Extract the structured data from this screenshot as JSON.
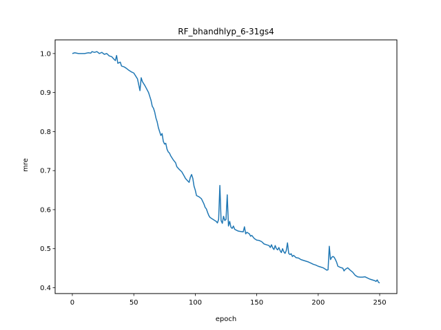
{
  "chart_data": {
    "type": "line",
    "title": "RF_bhandhlyp_6-31gs4",
    "xlabel": "epoch",
    "ylabel": "mre",
    "xlim": [
      -14,
      264
    ],
    "ylim": [
      0.385,
      1.035
    ],
    "xticks": [
      0,
      50,
      100,
      150,
      200,
      250
    ],
    "yticks": [
      0.4,
      0.5,
      0.6,
      0.7,
      0.8,
      0.9,
      1.0
    ],
    "xtick_labels": [
      "0",
      "50",
      "100",
      "150",
      "200",
      "250"
    ],
    "ytick_labels": [
      "0.4",
      "0.5",
      "0.6",
      "0.7",
      "0.8",
      "0.9",
      "1.0"
    ],
    "grid": false,
    "legend": "none",
    "series": [
      {
        "color": "#1f77b4",
        "points": [
          [
            0,
            1.0
          ],
          [
            2,
            1.002
          ],
          [
            5,
            1.0
          ],
          [
            8,
            1.0
          ],
          [
            10,
            1.0
          ],
          [
            13,
            1.002
          ],
          [
            15,
            1.001
          ],
          [
            16,
            1.005
          ],
          [
            18,
            1.003
          ],
          [
            20,
            1.005
          ],
          [
            22,
            1.0
          ],
          [
            24,
            1.003
          ],
          [
            26,
            0.998
          ],
          [
            28,
            1.0
          ],
          [
            30,
            0.994
          ],
          [
            32,
            0.992
          ],
          [
            34,
            0.985
          ],
          [
            35,
            0.982
          ],
          [
            36,
            0.995
          ],
          [
            37,
            0.975
          ],
          [
            39,
            0.978
          ],
          [
            40,
            0.968
          ],
          [
            42,
            0.966
          ],
          [
            44,
            0.962
          ],
          [
            46,
            0.957
          ],
          [
            48,
            0.953
          ],
          [
            50,
            0.95
          ],
          [
            52,
            0.94
          ],
          [
            53,
            0.935
          ],
          [
            54,
            0.92
          ],
          [
            55,
            0.905
          ],
          [
            56,
            0.938
          ],
          [
            57,
            0.928
          ],
          [
            59,
            0.918
          ],
          [
            60,
            0.912
          ],
          [
            62,
            0.9
          ],
          [
            63,
            0.89
          ],
          [
            64,
            0.88
          ],
          [
            65,
            0.865
          ],
          [
            66,
            0.86
          ],
          [
            67,
            0.85
          ],
          [
            68,
            0.835
          ],
          [
            69,
            0.825
          ],
          [
            70,
            0.81
          ],
          [
            71,
            0.8
          ],
          [
            72,
            0.79
          ],
          [
            73,
            0.795
          ],
          [
            74,
            0.775
          ],
          [
            75,
            0.768
          ],
          [
            76,
            0.77
          ],
          [
            77,
            0.755
          ],
          [
            78,
            0.748
          ],
          [
            79,
            0.745
          ],
          [
            80,
            0.738
          ],
          [
            82,
            0.728
          ],
          [
            84,
            0.72
          ],
          [
            85,
            0.71
          ],
          [
            87,
            0.703
          ],
          [
            89,
            0.697
          ],
          [
            91,
            0.686
          ],
          [
            92,
            0.68
          ],
          [
            94,
            0.673
          ],
          [
            95,
            0.67
          ],
          [
            96,
            0.683
          ],
          [
            97,
            0.69
          ],
          [
            98,
            0.68
          ],
          [
            99,
            0.66
          ],
          [
            100,
            0.65
          ],
          [
            101,
            0.636
          ],
          [
            103,
            0.633
          ],
          [
            105,
            0.628
          ],
          [
            107,
            0.615
          ],
          [
            108,
            0.606
          ],
          [
            109,
            0.602
          ],
          [
            110,
            0.593
          ],
          [
            111,
            0.585
          ],
          [
            112,
            0.58
          ],
          [
            114,
            0.576
          ],
          [
            116,
            0.572
          ],
          [
            117,
            0.57
          ],
          [
            118,
            0.566
          ],
          [
            119,
            0.575
          ],
          [
            120,
            0.662
          ],
          [
            121,
            0.572
          ],
          [
            122,
            0.565
          ],
          [
            123,
            0.583
          ],
          [
            124,
            0.572
          ],
          [
            125,
            0.575
          ],
          [
            126,
            0.638
          ],
          [
            127,
            0.558
          ],
          [
            128,
            0.57
          ],
          [
            129,
            0.555
          ],
          [
            130,
            0.552
          ],
          [
            131,
            0.558
          ],
          [
            132,
            0.55
          ],
          [
            133,
            0.548
          ],
          [
            135,
            0.545
          ],
          [
            137,
            0.544
          ],
          [
            139,
            0.543
          ],
          [
            140,
            0.556
          ],
          [
            141,
            0.538
          ],
          [
            142,
            0.542
          ],
          [
            144,
            0.538
          ],
          [
            145,
            0.532
          ],
          [
            146,
            0.534
          ],
          [
            148,
            0.526
          ],
          [
            150,
            0.522
          ],
          [
            152,
            0.521
          ],
          [
            154,
            0.518
          ],
          [
            156,
            0.512
          ],
          [
            158,
            0.51
          ],
          [
            160,
            0.508
          ],
          [
            161,
            0.503
          ],
          [
            162,
            0.51
          ],
          [
            163,
            0.502
          ],
          [
            164,
            0.498
          ],
          [
            165,
            0.508
          ],
          [
            166,
            0.5
          ],
          [
            167,
            0.497
          ],
          [
            168,
            0.503
          ],
          [
            169,
            0.495
          ],
          [
            170,
            0.49
          ],
          [
            171,
            0.5
          ],
          [
            172,
            0.492
          ],
          [
            173,
            0.488
          ],
          [
            174,
            0.495
          ],
          [
            175,
            0.515
          ],
          [
            176,
            0.488
          ],
          [
            177,
            0.485
          ],
          [
            178,
            0.487
          ],
          [
            179,
            0.48
          ],
          [
            180,
            0.483
          ],
          [
            182,
            0.477
          ],
          [
            184,
            0.476
          ],
          [
            186,
            0.472
          ],
          [
            188,
            0.47
          ],
          [
            190,
            0.468
          ],
          [
            192,
            0.466
          ],
          [
            194,
            0.463
          ],
          [
            196,
            0.46
          ],
          [
            198,
            0.458
          ],
          [
            200,
            0.455
          ],
          [
            202,
            0.453
          ],
          [
            204,
            0.451
          ],
          [
            206,
            0.447
          ],
          [
            207,
            0.445
          ],
          [
            208,
            0.446
          ],
          [
            209,
            0.506
          ],
          [
            210,
            0.472
          ],
          [
            211,
            0.478
          ],
          [
            212,
            0.48
          ],
          [
            213,
            0.478
          ],
          [
            214,
            0.472
          ],
          [
            215,
            0.465
          ],
          [
            216,
            0.455
          ],
          [
            218,
            0.452
          ],
          [
            220,
            0.45
          ],
          [
            221,
            0.443
          ],
          [
            222,
            0.447
          ],
          [
            224,
            0.451
          ],
          [
            226,
            0.445
          ],
          [
            228,
            0.44
          ],
          [
            230,
            0.432
          ],
          [
            232,
            0.428
          ],
          [
            234,
            0.427
          ],
          [
            236,
            0.427
          ],
          [
            238,
            0.428
          ],
          [
            240,
            0.425
          ],
          [
            242,
            0.422
          ],
          [
            244,
            0.42
          ],
          [
            246,
            0.418
          ],
          [
            247,
            0.416
          ],
          [
            248,
            0.42
          ],
          [
            249,
            0.414
          ],
          [
            250,
            0.412
          ]
        ]
      }
    ]
  }
}
